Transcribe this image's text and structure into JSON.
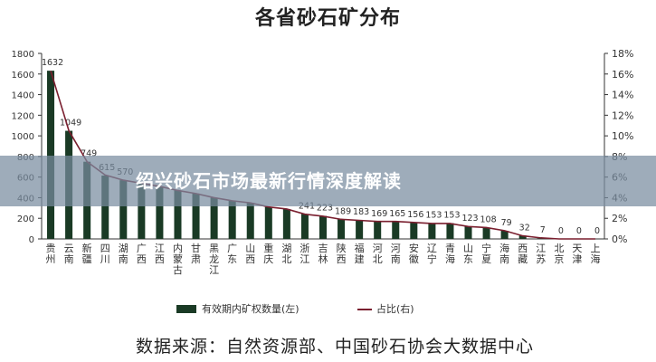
{
  "page": {
    "title": "各省砂石矿分布",
    "banner": "绍兴砂石市场最新行情深度解读",
    "source": "数据来源：自然资源部、中国砂石协会大数据中心"
  },
  "chart_data": {
    "type": "bar",
    "title": "各省砂石矿分布",
    "categories": [
      "贵州",
      "云南",
      "新疆",
      "四川",
      "湖南",
      "广西",
      "江西",
      "内蒙古",
      "甘肃",
      "黑龙江",
      "广东",
      "山西",
      "重庆",
      "湖北",
      "浙江",
      "吉林",
      "陕西",
      "福建",
      "河北",
      "河南",
      "安徽",
      "辽宁",
      "青海",
      "山东",
      "宁夏",
      "海南",
      "西藏",
      "江苏",
      "北京",
      "天津",
      "上海"
    ],
    "category_display": [
      "贵\n州",
      "云\n南",
      "新\n疆",
      "四\n川",
      "湖\n南",
      "广\n西",
      "江\n西",
      "内\n蒙\n古",
      "甘\n肃",
      "黑\n龙\n江",
      "广\n东",
      "山\n西",
      "重\n庆",
      "湖\n北",
      "浙\n江",
      "吉\n林",
      "陕\n西",
      "福\n建",
      "河\n北",
      "河\n南",
      "安\n徽",
      "辽\n宁",
      "青\n海",
      "山\n东",
      "宁\n夏",
      "海\n南",
      "西\n藏",
      "江\n苏",
      "北\n京",
      "天\n津",
      "上\n海"
    ],
    "series": [
      {
        "name": "有效期内矿权数量(左)",
        "type": "bar",
        "axis": "left",
        "color": "#1a3a25",
        "values": [
          1632,
          1049,
          749,
          615,
          570,
          540,
          510,
          470,
          440,
          400,
          370,
          350,
          310,
          290,
          241,
          223,
          189,
          183,
          169,
          165,
          156,
          153,
          153,
          123,
          108,
          79,
          32,
          7,
          0,
          0,
          0
        ]
      },
      {
        "name": "占比(右)",
        "type": "line",
        "axis": "right",
        "color": "#7a1f2f",
        "values": [
          16.3,
          10.5,
          7.5,
          6.2,
          5.7,
          5.4,
          5.1,
          4.7,
          4.4,
          4.0,
          3.7,
          3.5,
          3.1,
          2.9,
          2.4,
          2.2,
          1.9,
          1.8,
          1.7,
          1.7,
          1.6,
          1.5,
          1.5,
          1.2,
          1.1,
          0.8,
          0.3,
          0.1,
          0,
          0,
          0
        ]
      }
    ],
    "data_labels": [
      "1632",
      "1049",
      "749",
      "615",
      "570",
      "",
      "",
      "",
      "",
      "",
      "",
      "",
      "",
      "",
      "241",
      "223",
      "189",
      "183",
      "169",
      "165",
      "156",
      "153",
      "153",
      "123",
      "108",
      "79",
      "32",
      "7",
      "0",
      "0",
      "0"
    ],
    "y_left": {
      "lim": [
        0,
        1800
      ],
      "ticks": [
        "0",
        "200",
        "400",
        "600",
        "800",
        "1000",
        "1200",
        "1400",
        "1600",
        "1800"
      ]
    },
    "y_right": {
      "lim": [
        0,
        18
      ],
      "ticks": [
        "0%",
        "2%",
        "4%",
        "6%",
        "8%",
        "10%",
        "12%",
        "14%",
        "16%",
        "18%"
      ]
    },
    "grid": false,
    "legend_position": "bottom"
  }
}
